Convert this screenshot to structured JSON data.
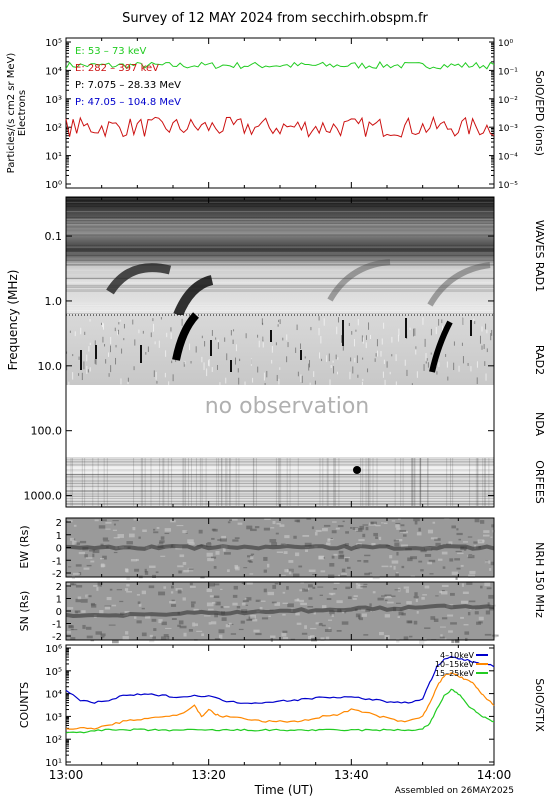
{
  "title": "Survey of 12 MAY 2024 from secchirh.obspm.fr",
  "footer": "Assembled on 26MAY2025",
  "xaxis": {
    "label": "Time (UT)",
    "ticks": [
      "13:00",
      "13:20",
      "13:40",
      "14:00"
    ],
    "range_minutes": [
      0,
      60
    ]
  },
  "chart_data": [
    {
      "type": "line",
      "name": "particles",
      "ylabel": "Particles/(s cm2 sr MeV)",
      "ylabel2": "Electrons",
      "right_label": "SolO/EPD (ions)",
      "yscale": "log",
      "ylim": [
        1,
        100000
      ],
      "yticks_left": [
        "10⁰",
        "10¹",
        "10²",
        "10³",
        "10⁴",
        "10⁵"
      ],
      "yticks_right": [
        "10⁻⁵",
        "10⁻⁴",
        "10⁻³",
        "10⁻²",
        "10⁻¹",
        "10⁰"
      ],
      "legend_position": "top-left",
      "legend": [
        {
          "label": "E: 53 – 73 keV",
          "color": "#22cc22"
        },
        {
          "label": "E: 282 – 397 keV",
          "color": "#cc1111"
        },
        {
          "label": "P: 7.075 – 28.33 MeV",
          "color": "#000000"
        },
        {
          "label": "P: 47.05 – 104.8 MeV",
          "color": "#0000cc"
        }
      ],
      "series": [
        {
          "name": "E: 53 – 73 keV",
          "color": "#22cc22",
          "level": 15000,
          "spread": 0.12
        },
        {
          "name": "E: 282 – 397 keV",
          "color": "#cc1111",
          "level": 100,
          "spread": 0.35
        }
      ]
    },
    {
      "type": "heatmap",
      "name": "radio-spectrum",
      "ylabel": "Frequency (MHz)",
      "yscale": "log",
      "yticks": [
        "0.1",
        "1.0",
        "10.0",
        "100.0",
        "1000.0"
      ],
      "instruments": [
        "WAVES RAD1",
        "RAD2",
        "NDA",
        "ORFEES"
      ],
      "no_observation_label": "no observation"
    },
    {
      "type": "heatmap",
      "name": "nrh-ew",
      "ylabel": "EW (Rs)",
      "yticks": [
        "-2",
        "-1",
        "0",
        "1",
        "2"
      ],
      "instrument": "NRH 150 MHz"
    },
    {
      "type": "heatmap",
      "name": "nrh-sn",
      "ylabel": "SN (Rs)",
      "yticks": [
        "-2",
        "-1",
        "0",
        "1",
        "2"
      ]
    },
    {
      "type": "line",
      "name": "stix",
      "ylabel": "COUNTS",
      "right_label": "SolO/STIX",
      "yscale": "log",
      "ylim": [
        10,
        1000000
      ],
      "yticks": [
        "10¹",
        "10²",
        "10³",
        "10⁴",
        "10⁵",
        "10⁶"
      ],
      "legend_position": "top-right",
      "series": [
        {
          "name": "4–10keV",
          "color": "#0000cc",
          "x": [
            0,
            2,
            4,
            6,
            8,
            10,
            12,
            14,
            16,
            18,
            20,
            22,
            24,
            26,
            28,
            30,
            32,
            34,
            36,
            38,
            40,
            42,
            44,
            46,
            48,
            50,
            51,
            52,
            53,
            54,
            55,
            56,
            57,
            58,
            59,
            60
          ],
          "y": [
            15000,
            5000,
            4000,
            5000,
            8000,
            9000,
            9000,
            8000,
            7000,
            8000,
            8000,
            5000,
            4000,
            4000,
            4000,
            5000,
            5000,
            6000,
            7000,
            7000,
            7000,
            6000,
            5000,
            4000,
            4000,
            6000,
            30000,
            150000,
            300000,
            400000,
            350000,
            300000,
            250000,
            220000,
            200000,
            150000
          ]
        },
        {
          "name": "10–15keV",
          "color": "#ff8800",
          "x": [
            0,
            2,
            4,
            6,
            8,
            10,
            12,
            14,
            16,
            18,
            19,
            20,
            21,
            22,
            24,
            26,
            28,
            30,
            32,
            34,
            36,
            38,
            40,
            42,
            44,
            46,
            48,
            50,
            51,
            52,
            53,
            54,
            55,
            56,
            57,
            58,
            59,
            60
          ],
          "y": [
            300,
            300,
            300,
            400,
            600,
            700,
            900,
            1000,
            1200,
            3000,
            1000,
            2000,
            1200,
            1000,
            900,
            700,
            600,
            600,
            600,
            700,
            1000,
            1200,
            2000,
            1500,
            1000,
            700,
            600,
            1000,
            4000,
            20000,
            60000,
            80000,
            60000,
            40000,
            30000,
            12000,
            6000,
            3000
          ]
        },
        {
          "name": "15–25keV",
          "color": "#22cc22",
          "x": [
            0,
            2,
            4,
            6,
            8,
            10,
            12,
            14,
            16,
            18,
            20,
            22,
            24,
            26,
            28,
            30,
            32,
            34,
            36,
            38,
            40,
            42,
            44,
            46,
            48,
            50,
            51,
            52,
            53,
            54,
            55,
            56,
            57,
            58,
            59,
            60
          ],
          "y": [
            200,
            200,
            250,
            250,
            250,
            260,
            250,
            250,
            250,
            250,
            250,
            250,
            250,
            250,
            250,
            250,
            250,
            250,
            250,
            250,
            250,
            250,
            250,
            250,
            250,
            280,
            500,
            2000,
            8000,
            15000,
            10000,
            4000,
            2000,
            1200,
            800,
            600
          ]
        }
      ]
    }
  ]
}
